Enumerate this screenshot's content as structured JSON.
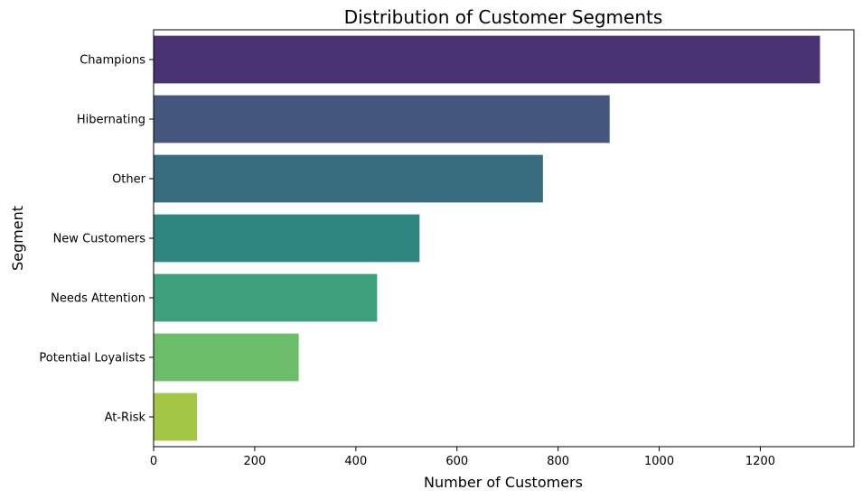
{
  "chart_data": {
    "type": "bar",
    "orientation": "horizontal",
    "title": "Distribution of Customer Segments",
    "xlabel": "Number of Customers",
    "ylabel": "Segment",
    "categories": [
      "Champions",
      "Hibernating",
      "Other",
      "New Customers",
      "Needs Attention",
      "Potential Loyalists",
      "At-Risk"
    ],
    "values": [
      1318,
      902,
      770,
      526,
      442,
      287,
      86
    ],
    "colors": [
      "#4a3373",
      "#45567f",
      "#386d7f",
      "#2e8680",
      "#3ca17a",
      "#6bbd69",
      "#a3c644"
    ],
    "xlim": [
      0,
      1385
    ],
    "xticks": [
      0,
      200,
      400,
      600,
      800,
      1000,
      1200
    ],
    "grid": false
  }
}
